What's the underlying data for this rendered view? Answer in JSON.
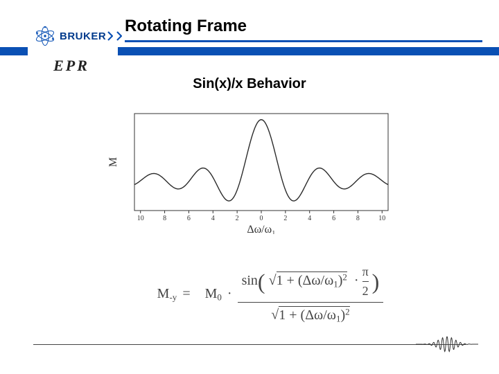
{
  "header": {
    "brand": "BRUKER",
    "brand_color": "#003a8c",
    "chevron_color": "#0a50b4",
    "subbrand": "EPR",
    "title": "Rotating Frame",
    "rule_color": "#0a50b4"
  },
  "section": {
    "title": "Sin(x)/x Behavior"
  },
  "chart": {
    "type": "line",
    "xlim": [
      -10.5,
      10.5
    ],
    "ylim": [
      -0.5,
      1.1
    ],
    "xlabel": "Δω/ω₁",
    "ylabel": "M",
    "xticks": [
      -10,
      -8,
      -6,
      -4,
      -2,
      0,
      2,
      4,
      6,
      8,
      10
    ],
    "xtick_labels": [
      "10",
      "8",
      "6",
      "4",
      "2",
      "0",
      "2",
      "4",
      "6",
      "8",
      "10"
    ],
    "tick_fontsize": 10,
    "label_fontsize": 16,
    "line_color": "#2b2b2b",
    "axis_color": "#333333",
    "line_width": 1.4,
    "x_samples_start": -10.5,
    "x_samples_end": 10.5,
    "x_samples_step": 0.07
  },
  "equation": {
    "lhs": "M<sub>-y</sub>",
    "eq": "=",
    "m0": "M<sub>0</sub>",
    "dot": "·",
    "num_prefix": "sin",
    "num_sqrt_arg": "1 + (Δω/ω<sub>1</sub>)<sup>2</sup>",
    "num_dot": "·",
    "num_pi_over_2_top": "π",
    "num_pi_over_2_bot": "2",
    "den_sqrt_arg": "1 + (Δω/ω<sub>1</sub>)<sup>2</sup>",
    "sqrt_char": "√"
  },
  "footer": {
    "fid_color": "#333333"
  }
}
